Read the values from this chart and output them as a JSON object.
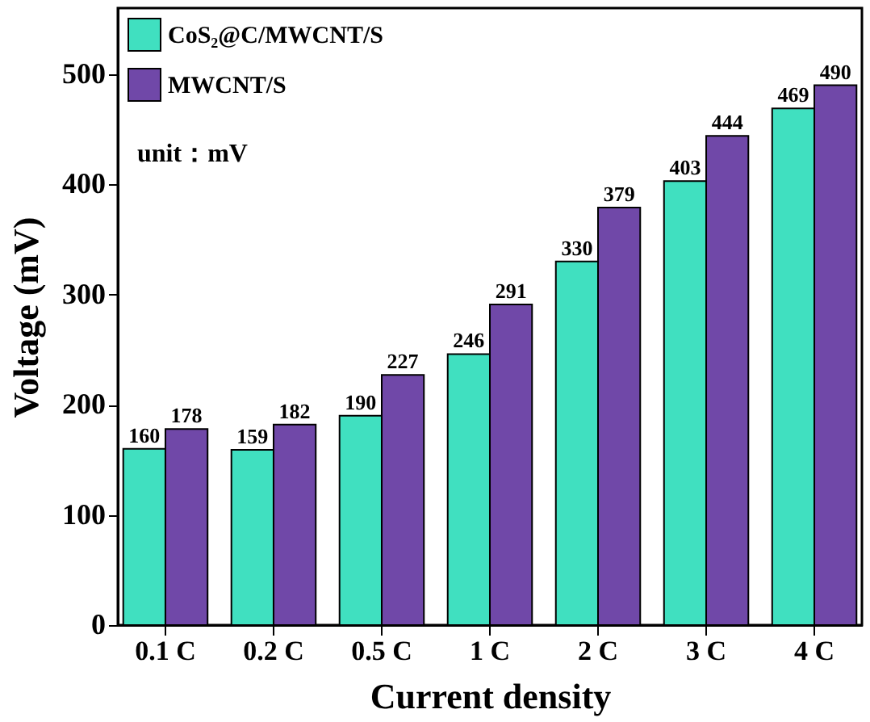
{
  "chart_data": {
    "type": "bar",
    "xlabel": "Current density",
    "ylabel": "Voltage (mV)",
    "categories": [
      "0.1 C",
      "0.2 C",
      "0.5 C",
      "1 C",
      "2 C",
      "3 C",
      "4 C"
    ],
    "series": [
      {
        "name": "CoS₂@C/MWCNT/S",
        "color": "#40e0c0",
        "values": [
          160,
          159,
          190,
          246,
          330,
          403,
          469
        ]
      },
      {
        "name": "MWCNT/S",
        "color": "#7048a8",
        "values": [
          178,
          182,
          227,
          291,
          379,
          444,
          490
        ]
      }
    ],
    "ylim": [
      0,
      560
    ],
    "yticks": [
      0,
      100,
      200,
      300,
      400,
      500
    ],
    "data_labels": true,
    "legend": "top left",
    "grid": false,
    "annotations": [
      "unit：mV"
    ]
  }
}
